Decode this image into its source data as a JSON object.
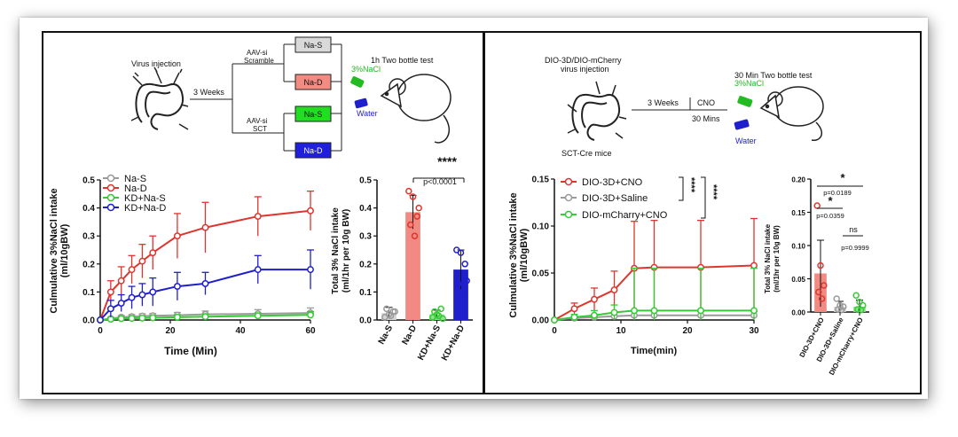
{
  "colors": {
    "red": "#e0342e",
    "gray": "#9a9a9a",
    "green": "#33cc33",
    "blue": "#1f1fcc",
    "pink": "#f08a82",
    "lightgray": "#d4d4d4",
    "lightgreen": "#8ce08c"
  },
  "left_panel": {
    "schematic": {
      "virus_injection": "Virus injection",
      "weeks": "3 Weeks",
      "aav_scramble_1": "AAV-si",
      "aav_scramble_2": "Scramble",
      "aav_sct_1": "AAV-si",
      "aav_sct_2": "SCT",
      "box_na_s_1": "Na-S",
      "box_na_d_1": "Na-D",
      "box_na_s_2": "Na-S",
      "box_na_d_2": "Na-D",
      "test_title": "1h Two bottle test",
      "nacl": "3%NaCl",
      "water": "Water"
    }
  },
  "right_panel": {
    "schematic": {
      "virus_1": "DIO-3D/DIO-mCherry",
      "virus_2": "virus injection",
      "mice": "SCT-Cre mice",
      "weeks": "3 Weeks",
      "cno": "CNO",
      "mins": "30 Mins",
      "test_title": "30 Min Two bottle test",
      "nacl": "3%NaCl",
      "water": "Water"
    }
  },
  "chart_data": [
    {
      "type": "line",
      "ylabel": "Culmulative 3%NaCl intake (ml/10gBW)",
      "ylabel_1": "Culmulative 3%NaCl intake",
      "ylabel_2": "(ml/10gBW)",
      "xlabel": "Time (Min)",
      "xlim": [
        0,
        60
      ],
      "ylim": [
        0,
        0.5
      ],
      "xticks": [
        "0",
        "20",
        "40",
        "60"
      ],
      "yticks": [
        "0.0",
        "0.1",
        "0.2",
        "0.3",
        "0.4",
        "0.5"
      ],
      "x": [
        0,
        3,
        6,
        9,
        12,
        15,
        22,
        30,
        45,
        60
      ],
      "series": [
        {
          "name": "Na-S",
          "color": "#9a9a9a",
          "values": [
            0,
            0.005,
            0.01,
            0.012,
            0.014,
            0.015,
            0.017,
            0.02,
            0.022,
            0.025
          ],
          "errors": [
            0,
            0.005,
            0.006,
            0.007,
            0.008,
            0.008,
            0.01,
            0.012,
            0.015,
            0.018
          ]
        },
        {
          "name": "Na-D",
          "color": "#e0342e",
          "values": [
            0,
            0.1,
            0.14,
            0.18,
            0.21,
            0.24,
            0.3,
            0.33,
            0.37,
            0.39
          ],
          "errors": [
            0,
            0.04,
            0.05,
            0.05,
            0.06,
            0.06,
            0.08,
            0.09,
            0.07,
            0.07
          ]
        },
        {
          "name": "KD+Na-S",
          "color": "#33cc33",
          "values": [
            0,
            0.003,
            0.005,
            0.006,
            0.007,
            0.008,
            0.01,
            0.012,
            0.015,
            0.018
          ],
          "errors": [
            0,
            0.004,
            0.005,
            0.006,
            0.006,
            0.007,
            0.008,
            0.01,
            0.01,
            0.012
          ]
        },
        {
          "name": "KD+Na-D",
          "color": "#1f1fcc",
          "values": [
            0,
            0.04,
            0.06,
            0.08,
            0.09,
            0.1,
            0.12,
            0.13,
            0.18,
            0.18
          ],
          "errors": [
            0,
            0.03,
            0.03,
            0.04,
            0.04,
            0.05,
            0.05,
            0.04,
            0.05,
            0.07
          ]
        }
      ]
    },
    {
      "type": "bar",
      "ylabel": "Total 3% NaCl intake (ml/1hr per 10g BW)",
      "ylabel_1": "Total 3% NaCl intake",
      "ylabel_2": "(ml/1hr per 10g BW)",
      "ylim": [
        0,
        0.5
      ],
      "yticks": [
        "0.0",
        "0.1",
        "0.2",
        "0.3",
        "0.4",
        "0.5"
      ],
      "categories": [
        "Na-S",
        "Na-D",
        "KD+Na-S",
        "KD+Na-D"
      ],
      "values": [
        0.025,
        0.385,
        0.02,
        0.18
      ],
      "colors": [
        "#d4d4d4",
        "#f08a82",
        "#8ce08c",
        "#1f1fcc"
      ],
      "point_colors": [
        "#9a9a9a",
        "#e0342e",
        "#33cc33",
        "#1f1fcc"
      ],
      "points": [
        [
          0.01,
          0.02,
          0.03,
          0.04,
          0.015,
          0.03
        ],
        [
          0.46,
          0.44,
          0.37,
          0.34,
          0.3,
          0.4
        ],
        [
          0.01,
          0.02,
          0.04,
          0.03,
          0.015,
          0.005
        ],
        [
          0.25,
          0.24,
          0.2,
          0.13,
          0.1,
          0.14
        ]
      ],
      "errors": [
        0.02,
        0.06,
        0.015,
        0.07
      ],
      "annotation_stars": "****",
      "annotation_p": "p<0.0001"
    },
    {
      "type": "line",
      "ylabel": "Culmulative 3%NaCl intake (ml/10gBW)",
      "ylabel_1": "Culmulative 3%NaCl intake",
      "ylabel_2": "(ml/10gBW)",
      "xlabel": "Time(min)",
      "xlim": [
        0,
        30
      ],
      "ylim": [
        0,
        0.15
      ],
      "xticks": [
        "0",
        "10",
        "20",
        "30"
      ],
      "yticks": [
        "0.00",
        "0.05",
        "0.10",
        "0.15"
      ],
      "x": [
        0,
        3,
        6,
        9,
        12,
        15,
        22,
        30
      ],
      "series": [
        {
          "name": "DIO-3D+CNO",
          "color": "#e0342e",
          "values": [
            0,
            0.012,
            0.022,
            0.032,
            0.055,
            0.056,
            0.056,
            0.058
          ],
          "errors": [
            0,
            0.006,
            0.012,
            0.02,
            0.05,
            0.05,
            0.05,
            0.05
          ]
        },
        {
          "name": "DIO-3D+Saline",
          "color": "#9a9a9a",
          "values": [
            0,
            0.002,
            0.003,
            0.004,
            0.005,
            0.005,
            0.005,
            0.005
          ],
          "errors": [
            0,
            0.002,
            0.003,
            0.004,
            0.004,
            0.004,
            0.004,
            0.004
          ]
        },
        {
          "name": "DIO-mCharry+CNO",
          "color": "#33cc33",
          "values": [
            0,
            0.003,
            0.005,
            0.008,
            0.01,
            0.01,
            0.01,
            0.01
          ],
          "errors": [
            0,
            0.003,
            0.005,
            0.008,
            0.045,
            0.045,
            0.045,
            0.045
          ]
        }
      ],
      "sig_1": "****",
      "sig_2": "****"
    },
    {
      "type": "bar",
      "ylabel": "Total 3% NaCl intake (ml/1hr per 10g BW)",
      "ylabel_1": "Total 3% NaCl intake",
      "ylabel_2": "(ml/1hr per 10g BW)",
      "ylim": [
        0,
        0.2
      ],
      "yticks": [
        "0.00",
        "0.05",
        "0.10",
        "0.15",
        "0.20"
      ],
      "categories": [
        "DIO-3D+CNO",
        "DIO-3D+Saline",
        "DIO-mCharry+CNO"
      ],
      "values": [
        0.058,
        0.008,
        0.008
      ],
      "colors": [
        "#f08a82",
        "#d4d4d4",
        "#8ce08c"
      ],
      "point_colors": [
        "#e0342e",
        "#9a9a9a",
        "#33cc33"
      ],
      "points": [
        [
          0.16,
          0.07,
          0.04,
          0.03,
          0.02
        ],
        [
          0.02,
          0.01,
          0.008,
          0.004,
          0.003
        ],
        [
          0.025,
          0.015,
          0.01,
          0.004,
          0.003
        ]
      ],
      "errors": [
        0.05,
        0.008,
        0.01
      ],
      "annotations": {
        "top_star": "*",
        "top_p": "p=0.0189",
        "mid_star": "*",
        "mid_p": "p=0.0359",
        "ns": "ns",
        "ns_p": "p=0.9999"
      }
    }
  ]
}
